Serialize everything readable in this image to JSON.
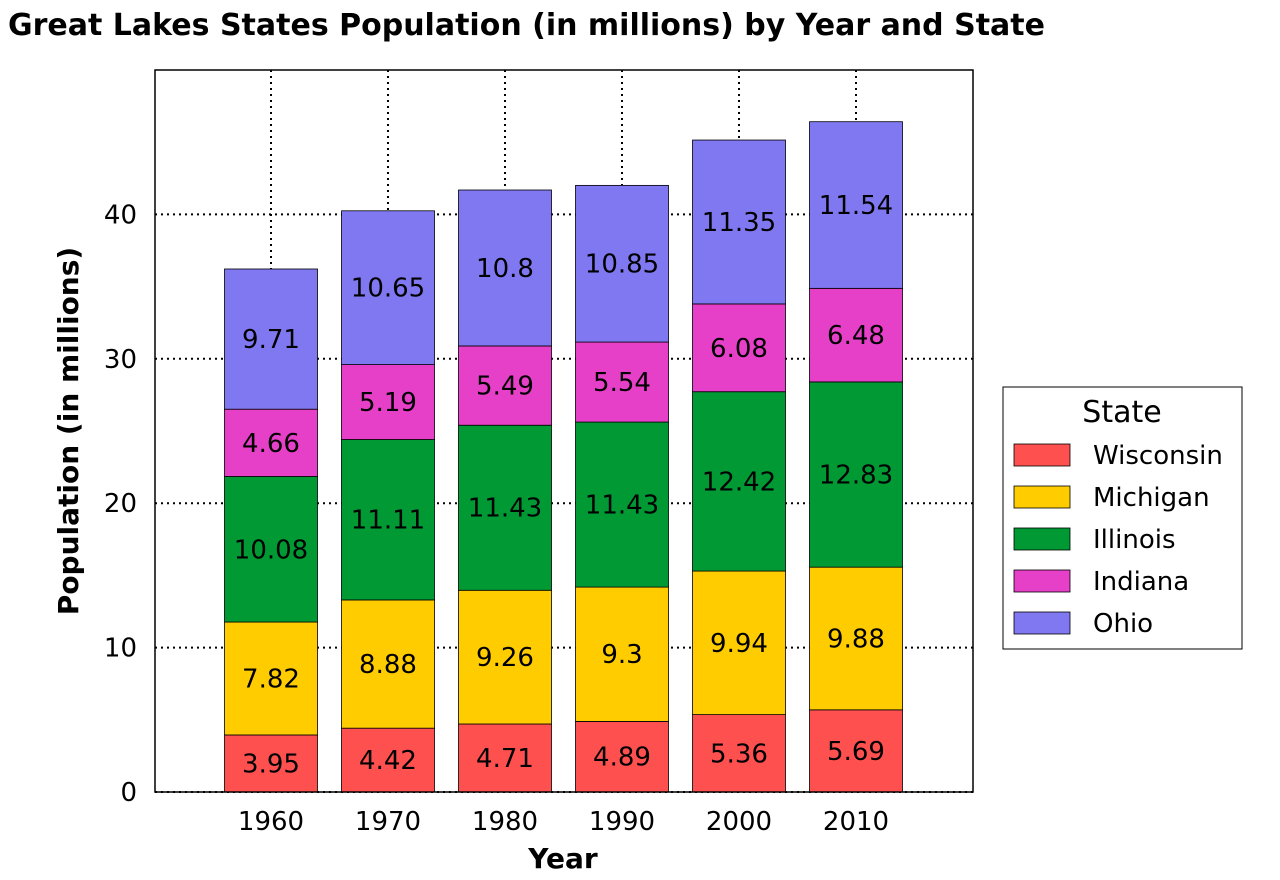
{
  "chart_data": {
    "type": "bar",
    "stacked": true,
    "title": "Great Lakes States Population (in millions) by Year and State",
    "xlabel": "Year",
    "ylabel": "Population (in millions)",
    "categories": [
      "1960",
      "1970",
      "1980",
      "1990",
      "2000",
      "2010"
    ],
    "ylim": [
      0,
      50
    ],
    "yticks": [
      0,
      10,
      20,
      30,
      40
    ],
    "grid": true,
    "legend": {
      "title": "State",
      "position": "right"
    },
    "series": [
      {
        "name": "Wisconsin",
        "color": "#ff5050",
        "values": [
          3.95,
          4.42,
          4.71,
          4.89,
          5.36,
          5.69
        ]
      },
      {
        "name": "Michigan",
        "color": "#ffcc00",
        "values": [
          7.82,
          8.88,
          9.26,
          9.3,
          9.94,
          9.88
        ]
      },
      {
        "name": "Illinois",
        "color": "#009933",
        "values": [
          10.08,
          11.11,
          11.43,
          11.43,
          12.42,
          12.83
        ]
      },
      {
        "name": "Indiana",
        "color": "#e640c8",
        "values": [
          4.66,
          5.19,
          5.49,
          5.54,
          6.08,
          6.48
        ]
      },
      {
        "name": "Ohio",
        "color": "#8078f0",
        "values": [
          9.71,
          10.65,
          10.8,
          10.85,
          11.35,
          11.54
        ]
      }
    ]
  }
}
